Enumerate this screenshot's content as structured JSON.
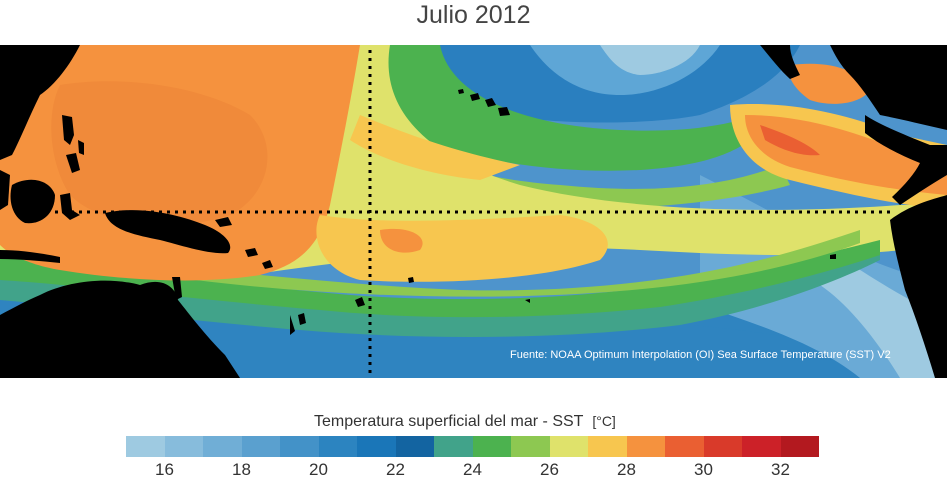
{
  "title": "Julio 2012",
  "source": "Fuente: NOAA Optimum Interpolation (OI) Sea Surface Temperature (SST) V2",
  "colorbar": {
    "label": "Temperatura superficial del mar - SST",
    "units": "[°C]",
    "colors": [
      "#9ecae1",
      "#87bcdc",
      "#70aed6",
      "#5aa0cf",
      "#4392c8",
      "#2c84c0",
      "#1a76b8",
      "#1364a1",
      "#41a38a",
      "#4cb24f",
      "#8dc851",
      "#dfe26b",
      "#f7c64f",
      "#f5923e",
      "#ea5f32",
      "#d93a2a",
      "#cc2128",
      "#b3191f"
    ],
    "ticks": [
      "16",
      "18",
      "20",
      "22",
      "24",
      "26",
      "28",
      "30",
      "32"
    ]
  },
  "legend_colors": {
    "land": "#000000",
    "equator_line": "#000000"
  }
}
